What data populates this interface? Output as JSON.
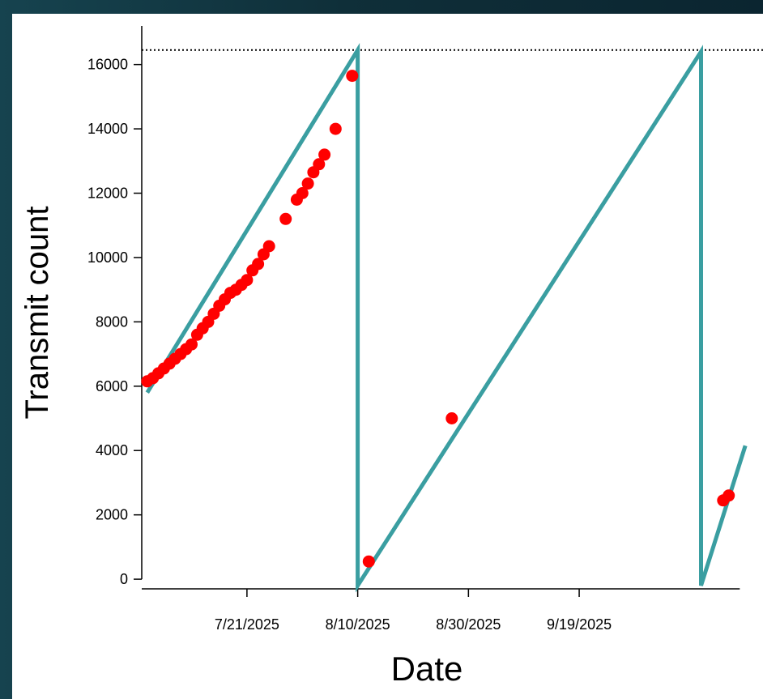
{
  "chart_data": {
    "type": "scatter",
    "title": "",
    "xlabel": "Date",
    "ylabel": "Transmit count",
    "x_range": [
      "2025-07-02",
      "2025-10-20"
    ],
    "ylim": [
      -300,
      17200
    ],
    "y_ticks": [
      0,
      2000,
      4000,
      6000,
      8000,
      10000,
      12000,
      14000,
      16000
    ],
    "x_ticks": [
      {
        "date": "2025-07-21",
        "label": "7/21/2025"
      },
      {
        "date": "2025-08-10",
        "label": "8/10/2025"
      },
      {
        "date": "2025-08-30",
        "label": "8/30/2025"
      },
      {
        "date": "2025-09-19",
        "label": "9/19/2025"
      }
    ],
    "grid": false,
    "legend": "none",
    "reference_line": {
      "y": 16450,
      "style": "dotted",
      "color": "#000000"
    },
    "colors": {
      "points": "#ff0000",
      "fit_line": "#3a9ea1"
    },
    "series": [
      {
        "kind": "points",
        "points": [
          [
            "2025-07-03",
            6150
          ],
          [
            "2025-07-04",
            6250
          ],
          [
            "2025-07-05",
            6400
          ],
          [
            "2025-07-06",
            6550
          ],
          [
            "2025-07-07",
            6700
          ],
          [
            "2025-07-08",
            6850
          ],
          [
            "2025-07-09",
            7000
          ],
          [
            "2025-07-10",
            7150
          ],
          [
            "2025-07-11",
            7300
          ],
          [
            "2025-07-12",
            7600
          ],
          [
            "2025-07-13",
            7800
          ],
          [
            "2025-07-14",
            8000
          ],
          [
            "2025-07-15",
            8250
          ],
          [
            "2025-07-16",
            8500
          ],
          [
            "2025-07-17",
            8700
          ],
          [
            "2025-07-18",
            8900
          ],
          [
            "2025-07-19",
            9000
          ],
          [
            "2025-07-20",
            9150
          ],
          [
            "2025-07-21",
            9300
          ],
          [
            "2025-07-22",
            9600
          ],
          [
            "2025-07-23",
            9800
          ],
          [
            "2025-07-24",
            10100
          ],
          [
            "2025-07-25",
            10350
          ],
          [
            "2025-07-28",
            11200
          ],
          [
            "2025-07-30",
            11800
          ],
          [
            "2025-07-31",
            12000
          ],
          [
            "2025-08-01",
            12300
          ],
          [
            "2025-08-02",
            12650
          ],
          [
            "2025-08-03",
            12900
          ],
          [
            "2025-08-04",
            13200
          ],
          [
            "2025-08-06",
            14000
          ],
          [
            "2025-08-09",
            15650
          ],
          [
            "2025-08-12",
            550
          ],
          [
            "2025-08-27",
            5000
          ],
          [
            "2025-10-15",
            2450
          ],
          [
            "2025-10-16",
            2600
          ]
        ]
      },
      {
        "kind": "fit_line",
        "points": [
          [
            "2025-07-03",
            5800
          ],
          [
            "2025-08-10",
            16450
          ],
          [
            "2025-08-10",
            -200
          ],
          [
            "2025-10-11",
            16400
          ],
          [
            "2025-10-11",
            -200
          ],
          [
            "2025-10-19",
            4150
          ]
        ]
      }
    ]
  }
}
